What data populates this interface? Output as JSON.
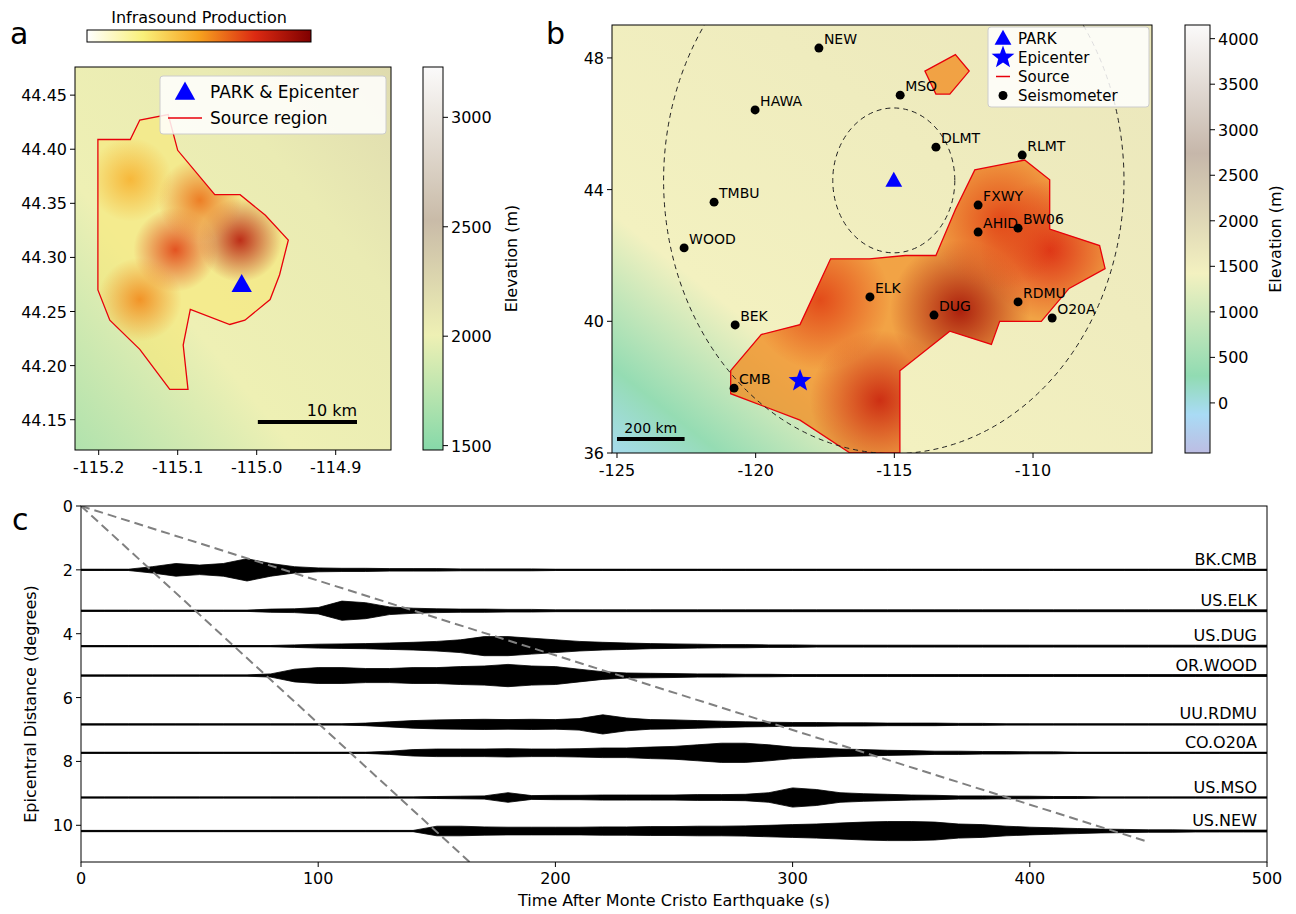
{
  "chart_data": [
    {
      "type": "map",
      "panel_label": "a",
      "xlim": [
        -115.23,
        -114.83
      ],
      "ylim": [
        44.122,
        44.476
      ],
      "xticks": [
        -115.2,
        -115.1,
        {
          "value": -115,
          "label": "-115.0"
        },
        -114.9
      ],
      "yticks": [
        44.15,
        {
          "value": 44.2,
          "label": "44.20"
        },
        44.25,
        {
          "value": 44.3,
          "label": "44.30"
        },
        44.35,
        {
          "value": 44.4,
          "label": "44.40"
        },
        44.45
      ],
      "colorbar": {
        "label": "Elevation (m)",
        "range": [
          1480,
          3230
        ],
        "ticks": [
          1500,
          2000,
          2500,
          3000
        ]
      },
      "colorbar2": {
        "label": "Infrasound Production",
        "range": [
          0,
          1
        ]
      },
      "series": [
        {
          "name": "PARK & Epicenter",
          "type": "point",
          "marker": "triangle",
          "color": "#0000ff",
          "x": [
            -115.019
          ],
          "y": [
            44.275
          ]
        },
        {
          "name": "Source region",
          "type": "polygon",
          "color": "#e8000b",
          "x": [
            -115.201,
            -115.16,
            -115.148,
            -115.112,
            -115.1,
            -115.053,
            -115.021,
            -114.989,
            -114.96,
            -114.971,
            -114.983,
            -115.015,
            -115.034,
            -115.084,
            -115.093,
            -115.087,
            -115.11,
            -115.148,
            -115.186,
            -115.201
          ],
          "y": [
            44.409,
            44.409,
            44.427,
            44.432,
            44.399,
            44.358,
            44.358,
            44.339,
            44.316,
            44.284,
            44.261,
            44.242,
            44.238,
            44.252,
            44.219,
            44.178,
            44.178,
            44.215,
            44.242,
            44.27
          ]
        }
      ],
      "production_peaks": {
        "x": [
          -115.021,
          -115.103,
          -115.072,
          -115.148,
          -115.16
        ],
        "y": [
          44.316,
          44.307,
          44.353,
          44.261,
          44.372
        ],
        "values": [
          0.85,
          0.7,
          0.6,
          0.55,
          0.45
        ]
      },
      "scale_bar": {
        "label": "10 km",
        "km": 10
      },
      "legend": "upper right"
    },
    {
      "type": "map",
      "panel_label": "b",
      "xlim": [
        -125.18,
        -105.71
      ],
      "ylim": [
        36,
        49
      ],
      "xticks": [
        -125,
        -120,
        -115,
        -110
      ],
      "yticks": [
        36,
        40,
        44,
        48
      ],
      "colorbar": {
        "label": "Elevation (m)",
        "range": [
          -550,
          4150
        ],
        "ticks": [
          0,
          500,
          1000,
          1500,
          2000,
          2500,
          3000,
          3500,
          4000
        ]
      },
      "series": [
        {
          "name": "PARK",
          "type": "point",
          "marker": "triangle",
          "color": "#0000ff",
          "x": [
            -115.02
          ],
          "y": [
            44.28
          ]
        },
        {
          "name": "Epicenter",
          "type": "point",
          "marker": "star",
          "color": "#0000ff",
          "x": [
            -118.4
          ],
          "y": [
            38.19
          ]
        },
        {
          "name": "Source",
          "type": "polygon",
          "color": "#e8000b",
          "x": [
            -120.9,
            -119.8,
            -118.4,
            -117.3,
            -115.9,
            -114.6,
            -113.5,
            -112.8,
            -112.1,
            -110.3,
            -109.4,
            -109.4,
            -107.6,
            -107.4,
            -108.7,
            -109.7,
            -111.2,
            -111.5,
            -113.0,
            -114.8,
            -114.8,
            -116.6,
            -118.4,
            -120.9,
            null,
            -113.9,
            -112.8,
            -112.3,
            -113.0,
            -113.5
          ],
          "y": [
            38.5,
            39.6,
            39.9,
            41.9,
            41.9,
            42.0,
            42.0,
            43.4,
            44.6,
            44.9,
            44.3,
            42.8,
            42.3,
            41.6,
            41.0,
            40.0,
            40.0,
            39.3,
            39.7,
            38.5,
            36.0,
            36.0,
            37.0,
            37.8,
            null,
            47.6,
            48.1,
            47.6,
            46.9,
            46.9
          ]
        },
        {
          "name": "Seismometer",
          "type": "point",
          "marker": "circle",
          "color": "#000000",
          "labels": [
            "NEW",
            "MSO",
            "HAWA",
            "DLMT",
            "RLMT",
            "TMBU",
            "WOOD",
            "FXWY",
            "AHID",
            "BW06",
            "ELK",
            "BEK",
            "DUG",
            "RDMU",
            "O20A",
            "CMB"
          ],
          "x": [
            -117.72,
            -114.79,
            -120.02,
            -113.5,
            -110.39,
            -121.5,
            -122.58,
            -111.98,
            -111.98,
            -110.54,
            -115.88,
            -120.74,
            -113.57,
            -110.54,
            -109.31,
            -120.78
          ],
          "y": [
            48.3,
            46.87,
            46.42,
            45.29,
            45.05,
            43.62,
            42.23,
            43.53,
            42.71,
            42.83,
            40.74,
            39.89,
            40.19,
            40.59,
            40.1,
            37.97
          ]
        }
      ],
      "production_peaks": {
        "x": [
          -112.63,
          -115.52,
          -109.39,
          -117.68,
          -111.19
        ],
        "y": [
          40.34,
          37.6,
          42.16,
          40.65,
          43.08
        ],
        "values": [
          0.9,
          0.8,
          0.75,
          0.7,
          0.7
        ]
      },
      "range_circles": {
        "radii": [
          2.2,
          8.3
        ]
      },
      "scale_bar": {
        "label": "200 km",
        "km": 200
      },
      "legend": "upper right"
    },
    {
      "type": "record_section",
      "panel_label": "c",
      "x_label": "Time After Monte Cristo Earthquake (s)",
      "y_label": "Epicentral Distance (degrees)",
      "xlim": [
        0,
        500
      ],
      "ylim": [
        11.15,
        0
      ],
      "xticks": [
        0,
        100,
        200,
        300,
        400,
        500
      ],
      "yticks": [
        0,
        2,
        4,
        6,
        8,
        10
      ],
      "x": [
        0,
        10,
        20,
        30,
        40,
        50,
        60,
        70,
        80,
        90,
        100,
        110,
        120,
        130,
        140,
        150,
        160,
        170,
        180,
        190,
        200,
        210,
        220,
        230,
        240,
        250,
        260,
        270,
        280,
        290,
        300,
        310,
        320,
        330,
        340,
        350,
        360,
        370,
        380,
        390,
        400,
        410,
        420,
        430,
        440,
        450,
        460,
        470,
        480,
        490,
        500
      ],
      "series": [
        {
          "name": "BK.CMB",
          "color": "#000000",
          "distance": 2.0,
          "values": [
            0.02,
            0.02,
            0.02,
            0.1,
            0.2,
            0.15,
            0.2,
            0.35,
            0.2,
            0.1,
            0.06,
            0.05,
            0.05,
            0.04,
            0.04,
            0.04,
            0.03,
            0.03,
            0.03,
            0.03,
            0.02,
            0.02,
            0.02,
            0.02,
            0.02,
            0.02,
            0.02,
            0.02,
            0.02,
            0.02,
            0.02,
            0.02,
            0.02,
            0.02,
            0.02,
            0.02,
            0.02,
            0.02,
            0.02,
            0.02,
            0.02,
            0.02,
            0.02,
            0.02,
            0.02,
            0.02,
            0.02,
            0.02,
            0.02,
            0.02,
            0.02
          ]
        },
        {
          "name": "US.ELK",
          "color": "#000000",
          "distance": 3.28,
          "values": [
            0.02,
            0.02,
            0.02,
            0.02,
            0.02,
            0.02,
            0.02,
            0.02,
            0.05,
            0.06,
            0.1,
            0.3,
            0.25,
            0.12,
            0.08,
            0.06,
            0.05,
            0.05,
            0.04,
            0.04,
            0.03,
            0.03,
            0.03,
            0.03,
            0.03,
            0.03,
            0.03,
            0.03,
            0.03,
            0.03,
            0.03,
            0.03,
            0.03,
            0.03,
            0.03,
            0.03,
            0.03,
            0.03,
            0.03,
            0.03,
            0.03,
            0.03,
            0.03,
            0.03,
            0.03,
            0.03,
            0.03,
            0.03,
            0.03,
            0.03,
            0.03
          ]
        },
        {
          "name": "US.DUG",
          "color": "#000000",
          "distance": 4.39,
          "values": [
            0.02,
            0.02,
            0.02,
            0.02,
            0.02,
            0.02,
            0.02,
            0.02,
            0.02,
            0.04,
            0.06,
            0.07,
            0.08,
            0.1,
            0.12,
            0.15,
            0.2,
            0.3,
            0.3,
            0.25,
            0.2,
            0.15,
            0.12,
            0.1,
            0.08,
            0.07,
            0.06,
            0.05,
            0.05,
            0.04,
            0.04,
            0.03,
            0.03,
            0.03,
            0.03,
            0.03,
            0.03,
            0.03,
            0.03,
            0.03,
            0.03,
            0.03,
            0.03,
            0.03,
            0.03,
            0.03,
            0.03,
            0.03,
            0.03,
            0.03,
            0.03
          ]
        },
        {
          "name": "OR.WOOD",
          "color": "#000000",
          "distance": 5.31,
          "values": [
            0.02,
            0.02,
            0.02,
            0.02,
            0.02,
            0.02,
            0.02,
            0.02,
            0.05,
            0.2,
            0.25,
            0.25,
            0.22,
            0.22,
            0.25,
            0.25,
            0.28,
            0.3,
            0.35,
            0.3,
            0.28,
            0.2,
            0.12,
            0.08,
            0.07,
            0.06,
            0.05,
            0.05,
            0.04,
            0.04,
            0.03,
            0.03,
            0.03,
            0.03,
            0.03,
            0.03,
            0.03,
            0.03,
            0.03,
            0.03,
            0.03,
            0.03,
            0.03,
            0.03,
            0.03,
            0.03,
            0.03,
            0.03,
            0.03,
            0.03,
            0.03
          ]
        },
        {
          "name": "UU.RDMU",
          "color": "#000000",
          "distance": 6.84,
          "values": [
            0.02,
            0.02,
            0.02,
            0.02,
            0.02,
            0.02,
            0.02,
            0.02,
            0.02,
            0.02,
            0.02,
            0.02,
            0.04,
            0.08,
            0.12,
            0.14,
            0.15,
            0.16,
            0.15,
            0.16,
            0.15,
            0.18,
            0.3,
            0.2,
            0.15,
            0.14,
            0.12,
            0.1,
            0.08,
            0.07,
            0.06,
            0.06,
            0.05,
            0.05,
            0.04,
            0.04,
            0.04,
            0.03,
            0.03,
            0.02,
            0.02,
            0.02,
            0.02,
            0.02,
            0.02,
            0.02,
            0.02,
            0.02,
            0.02,
            0.02,
            0.02
          ]
        },
        {
          "name": "CO.O20A",
          "color": "#000000",
          "distance": 7.73,
          "values": [
            0.02,
            0.02,
            0.02,
            0.02,
            0.02,
            0.02,
            0.02,
            0.02,
            0.02,
            0.02,
            0.02,
            0.02,
            0.02,
            0.05,
            0.1,
            0.12,
            0.12,
            0.12,
            0.13,
            0.12,
            0.12,
            0.13,
            0.15,
            0.15,
            0.18,
            0.2,
            0.25,
            0.3,
            0.3,
            0.25,
            0.18,
            0.15,
            0.12,
            0.1,
            0.08,
            0.07,
            0.05,
            0.05,
            0.04,
            0.04,
            0.03,
            0.03,
            0.02,
            0.02,
            0.02,
            0.02,
            0.02,
            0.02,
            0.02,
            0.02,
            0.02
          ]
        },
        {
          "name": "US.MSO",
          "color": "#000000",
          "distance": 9.13,
          "values": [
            0.02,
            0.02,
            0.02,
            0.02,
            0.02,
            0.02,
            0.02,
            0.02,
            0.02,
            0.02,
            0.02,
            0.02,
            0.02,
            0.02,
            0.02,
            0.03,
            0.04,
            0.05,
            0.15,
            0.06,
            0.07,
            0.07,
            0.08,
            0.08,
            0.08,
            0.08,
            0.09,
            0.09,
            0.1,
            0.15,
            0.3,
            0.25,
            0.15,
            0.12,
            0.1,
            0.08,
            0.07,
            0.05,
            0.05,
            0.04,
            0.04,
            0.03,
            0.03,
            0.02,
            0.02,
            0.02,
            0.02,
            0.02,
            0.02,
            0.02,
            0.02
          ]
        },
        {
          "name": "US.NEW",
          "color": "#000000",
          "distance": 10.18,
          "values": [
            0.02,
            0.02,
            0.02,
            0.02,
            0.02,
            0.02,
            0.02,
            0.02,
            0.02,
            0.02,
            0.02,
            0.02,
            0.02,
            0.02,
            0.02,
            0.15,
            0.15,
            0.13,
            0.12,
            0.12,
            0.12,
            0.12,
            0.13,
            0.13,
            0.14,
            0.14,
            0.15,
            0.15,
            0.16,
            0.18,
            0.2,
            0.22,
            0.25,
            0.28,
            0.3,
            0.3,
            0.28,
            0.22,
            0.2,
            0.15,
            0.12,
            0.1,
            0.08,
            0.06,
            0.05,
            0.04,
            0.04,
            0.03,
            0.03,
            0.03,
            0.03
          ]
        }
      ],
      "reference_lines": [
        {
          "x": [
            0,
            166
          ],
          "y": [
            0,
            11.3
          ],
          "line_style": "dashed"
        },
        {
          "x": [
            0,
            449
          ],
          "y": [
            0,
            10.5
          ],
          "line_style": "dashed"
        }
      ]
    }
  ]
}
